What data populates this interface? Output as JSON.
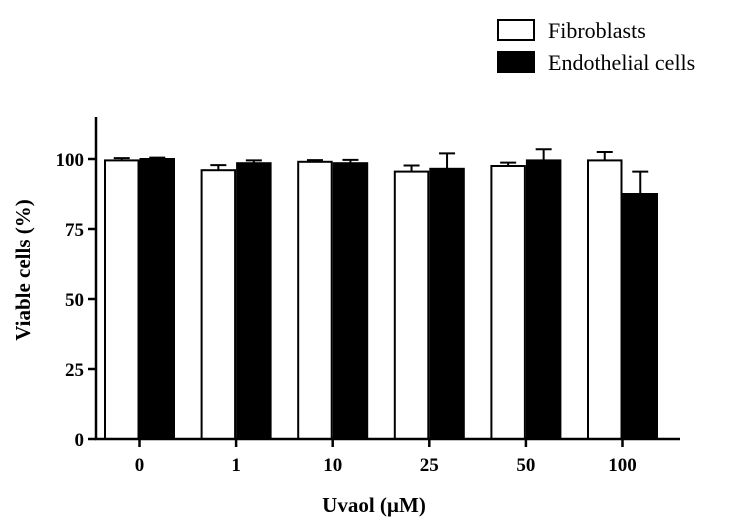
{
  "chart_data": {
    "type": "bar",
    "title": "",
    "xlabel": "Uvaol (µM)",
    "ylabel": "Viable cells (%)",
    "categories": [
      "0",
      "1",
      "10",
      "25",
      "50",
      "100"
    ],
    "ylim": [
      0,
      115
    ],
    "yticks": [
      0,
      25,
      50,
      75,
      100
    ],
    "grid": false,
    "legend_position": "top-right",
    "series": [
      {
        "name": "Fibroblasts",
        "fill": "#ffffff",
        "stroke": "#000000",
        "values": [
          99.5,
          96.0,
          99.0,
          95.5,
          97.5,
          99.5
        ],
        "errors": [
          0.8,
          1.8,
          0.6,
          2.2,
          1.2,
          3.0
        ]
      },
      {
        "name": "Endothelial cells",
        "fill": "#000000",
        "stroke": "#000000",
        "values": [
          100.0,
          98.5,
          98.5,
          96.5,
          99.5,
          87.5
        ],
        "errors": [
          0.5,
          1.0,
          1.2,
          5.5,
          4.0,
          8.0
        ]
      }
    ]
  }
}
